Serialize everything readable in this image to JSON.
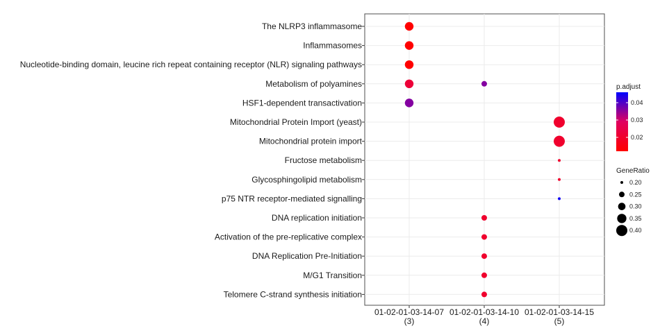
{
  "chart_data": {
    "type": "scatter",
    "categories_y": [
      "The NLRP3 inflammasome",
      "Inflammasomes",
      "Nucleotide-binding domain, leucine rich repeat containing receptor (NLR) signaling pathways",
      "Metabolism of polyamines",
      "HSF1-dependent transactivation",
      "Mitochondrial Protein Import (yeast)",
      "Mitochondrial protein import",
      "Fructose metabolism",
      "Glycosphingolipid metabolism",
      "p75 NTR receptor-mediated signalling",
      "DNA replication initiation",
      "Activation of the pre-replicative complex",
      "DNA Replication Pre-Initiation",
      "M/G1 Transition",
      "Telomere C-strand synthesis initiation"
    ],
    "categories_x": [
      {
        "name": "01-02-01-03-14-07",
        "count": "(3)"
      },
      {
        "name": "01-02-01-03-14-10",
        "count": "(4)"
      },
      {
        "name": "01-02-01-03-14-15",
        "count": "(5)"
      }
    ],
    "points": [
      {
        "x": 0,
        "y": 0,
        "gene_ratio": 0.333,
        "p_adjust": 0.012
      },
      {
        "x": 0,
        "y": 1,
        "gene_ratio": 0.333,
        "p_adjust": 0.012
      },
      {
        "x": 0,
        "y": 2,
        "gene_ratio": 0.333,
        "p_adjust": 0.012
      },
      {
        "x": 0,
        "y": 3,
        "gene_ratio": 0.333,
        "p_adjust": 0.022
      },
      {
        "x": 0,
        "y": 4,
        "gene_ratio": 0.333,
        "p_adjust": 0.036
      },
      {
        "x": 1,
        "y": 3,
        "gene_ratio": 0.25,
        "p_adjust": 0.036
      },
      {
        "x": 1,
        "y": 10,
        "gene_ratio": 0.25,
        "p_adjust": 0.02
      },
      {
        "x": 1,
        "y": 11,
        "gene_ratio": 0.25,
        "p_adjust": 0.02
      },
      {
        "x": 1,
        "y": 12,
        "gene_ratio": 0.25,
        "p_adjust": 0.02
      },
      {
        "x": 1,
        "y": 13,
        "gene_ratio": 0.25,
        "p_adjust": 0.02
      },
      {
        "x": 1,
        "y": 14,
        "gene_ratio": 0.25,
        "p_adjust": 0.02
      },
      {
        "x": 2,
        "y": 5,
        "gene_ratio": 0.4,
        "p_adjust": 0.02
      },
      {
        "x": 2,
        "y": 6,
        "gene_ratio": 0.4,
        "p_adjust": 0.02
      },
      {
        "x": 2,
        "y": 7,
        "gene_ratio": 0.2,
        "p_adjust": 0.02
      },
      {
        "x": 2,
        "y": 8,
        "gene_ratio": 0.2,
        "p_adjust": 0.02
      },
      {
        "x": 2,
        "y": 9,
        "gene_ratio": 0.2,
        "p_adjust": 0.045
      }
    ],
    "color_legend": {
      "title": "p.adjust",
      "ticks": [
        0.04,
        0.03,
        0.02
      ],
      "tick_labels": [
        "0.04",
        "0.03",
        "0.02"
      ],
      "range": [
        0.012,
        0.046
      ],
      "low_color": "#FF0000",
      "high_color": "#0000FF"
    },
    "size_legend": {
      "title": "GeneRatio",
      "values": [
        0.2,
        0.25,
        0.3,
        0.35,
        0.4
      ],
      "labels": [
        "0.20",
        "0.25",
        "0.30",
        "0.35",
        "0.40"
      ]
    },
    "grid": true,
    "legend_position": "right"
  }
}
